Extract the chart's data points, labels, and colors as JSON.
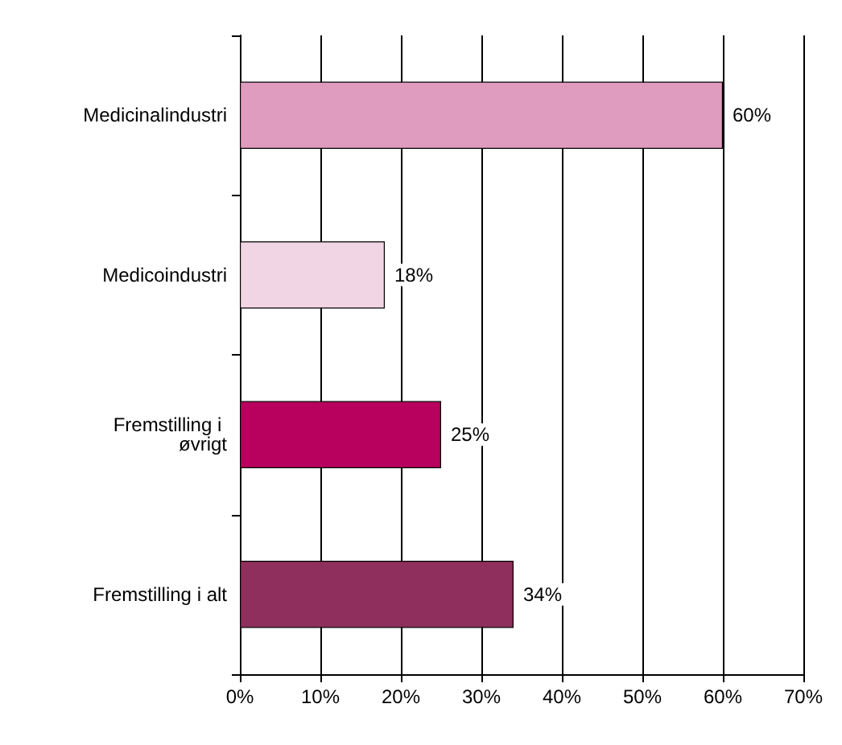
{
  "chart_data": {
    "type": "bar",
    "orientation": "horizontal",
    "categories": [
      "Medicinalindustri",
      "Medicoindustri",
      "Fremstilling i øvrigt",
      "Fremstilling i alt"
    ],
    "values": [
      60,
      18,
      25,
      34
    ],
    "colors": [
      "#e09cbf",
      "#f2d5e4",
      "#b8005e",
      "#8f2f5d"
    ],
    "value_labels": [
      "60%",
      "18%",
      "25%",
      "34%"
    ],
    "xlim": [
      0,
      70
    ],
    "xticks": [
      {
        "value": 0,
        "label": "0%"
      },
      {
        "value": 10,
        "label": "10%"
      },
      {
        "value": 20,
        "label": "20%"
      },
      {
        "value": 30,
        "label": "30%"
      },
      {
        "value": 40,
        "label": "40%"
      },
      {
        "value": 50,
        "label": "50%"
      },
      {
        "value": 60,
        "label": "60%"
      },
      {
        "value": 70,
        "label": "70%"
      }
    ],
    "grid": "x"
  }
}
